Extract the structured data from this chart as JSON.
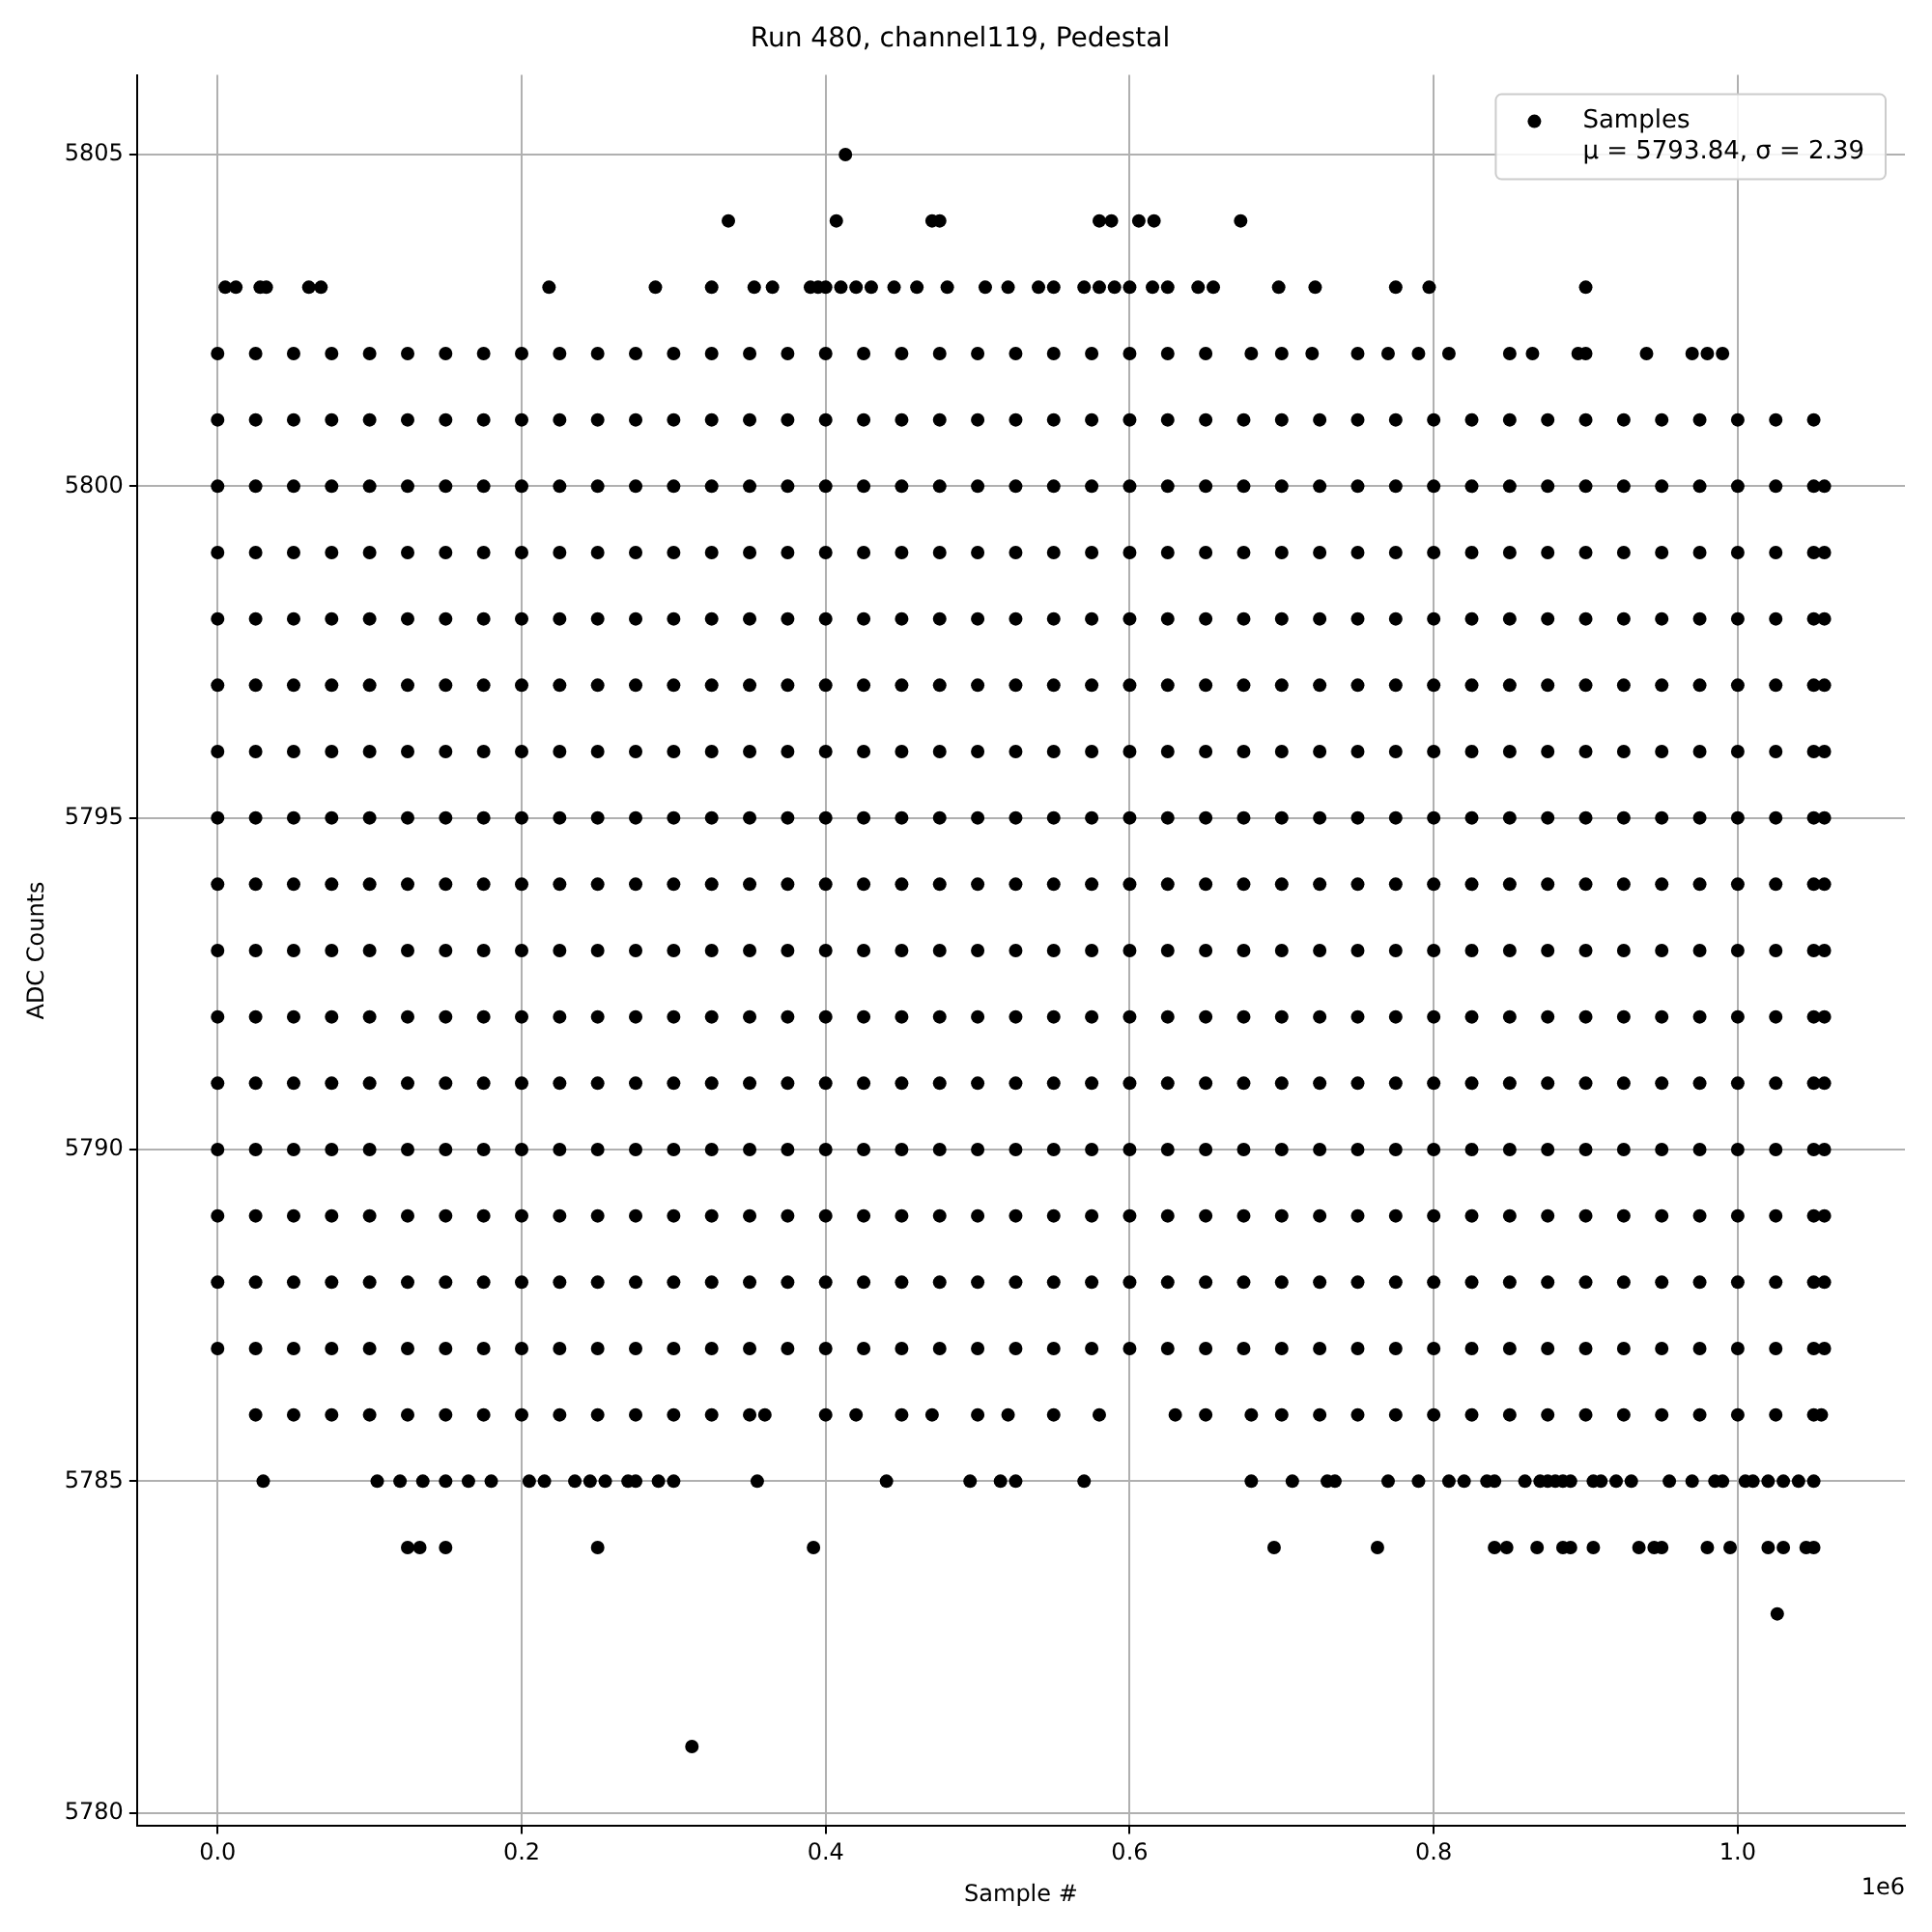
{
  "chart_data": {
    "type": "scatter",
    "title": "Run 480, channel119, Pedestal",
    "xlabel": "Sample #",
    "ylabel": "ADC Counts",
    "annotations": [
      "1e6"
    ],
    "xlim": [
      -0.053,
      1.11
    ],
    "ylim": [
      5779.8,
      5806.2
    ],
    "xticks": [
      {
        "value": 0,
        "label": "0.0"
      },
      {
        "value": 0.2,
        "label": "0.2"
      },
      {
        "value": 0.4,
        "label": "0.4"
      },
      {
        "value": 0.6,
        "label": "0.6"
      },
      {
        "value": 0.8,
        "label": "0.8"
      },
      {
        "value": 1,
        "label": "1.0"
      }
    ],
    "yticks": [
      5780,
      5785,
      5790,
      5795,
      5800,
      5805
    ],
    "grid": true,
    "legend": "top right",
    "marker": "circle",
    "series": [
      {
        "name": "Samples\nμ = 5793.84, σ = 2.39",
        "color": "#000000",
        "x": [
          0.413,
          0.336,
          0.407,
          0.47,
          0.475,
          0.58,
          0.588,
          0.606,
          0.616,
          0.673,
          1.026,
          0.312
        ],
        "values": [
          5805,
          5804,
          5804,
          5804,
          5804,
          5804,
          5804,
          5804,
          5804,
          5804,
          5783,
          5781
        ]
      },
      {
        "color": "#000000",
        "x": [
          0.005,
          0.012,
          0.028,
          0.032,
          0.06,
          0.068,
          0.218,
          0.288,
          0.325,
          0.353,
          0.365,
          0.39,
          0.395,
          0.4,
          0.41,
          0.42,
          0.43,
          0.445,
          0.46,
          0.48,
          0.505,
          0.52,
          0.54,
          0.55,
          0.57,
          0.58,
          0.59,
          0.6,
          0.615,
          0.625,
          0.645,
          0.655,
          0.698,
          0.722,
          0.775,
          0.797,
          0.9
        ],
        "values": [
          5803,
          5803,
          5803,
          5803,
          5803,
          5803,
          5803,
          5803,
          5803,
          5803,
          5803,
          5803,
          5803,
          5803,
          5803,
          5803,
          5803,
          5803,
          5803,
          5803,
          5803,
          5803,
          5803,
          5803,
          5803,
          5803,
          5803,
          5803,
          5803,
          5803,
          5803,
          5803,
          5803,
          5803,
          5803,
          5803,
          5803
        ]
      },
      {
        "color": "#000000",
        "x": [
          0,
          0.025,
          0.05,
          0.075,
          0.1,
          0.125,
          0.15,
          0.175,
          0.2,
          0.225,
          0.25,
          0.275,
          0.3,
          0.325,
          0.35,
          0.375,
          0.4,
          0.425,
          0.45,
          0.475,
          0.5,
          0.525,
          0.55,
          0.575,
          0.6,
          0.625,
          0.65,
          0.68,
          0.7,
          0.72,
          0.75,
          0.77,
          0.79,
          0.81,
          0.85,
          0.865,
          0.895,
          0.9,
          0.94,
          0.97,
          0.98,
          0.99
        ],
        "values": [
          5802,
          5802,
          5802,
          5802,
          5802,
          5802,
          5802,
          5802,
          5802,
          5802,
          5802,
          5802,
          5802,
          5802,
          5802,
          5802,
          5802,
          5802,
          5802,
          5802,
          5802,
          5802,
          5802,
          5802,
          5802,
          5802,
          5802,
          5802,
          5802,
          5802,
          5802,
          5802,
          5802,
          5802,
          5802,
          5802,
          5802,
          5802,
          5802,
          5802,
          5802,
          5802
        ]
      },
      {
        "color": "#000000",
        "x": [
          0,
          0.025,
          0.05,
          0.075,
          0.1,
          0.125,
          0.15,
          0.175,
          0.2,
          0.225,
          0.25,
          0.275,
          0.3,
          0.325,
          0.35,
          0.375,
          0.4,
          0.425,
          0.45,
          0.475,
          0.5,
          0.525,
          0.55,
          0.575,
          0.6,
          0.625,
          0.65,
          0.675,
          0.7,
          0.725,
          0.75,
          0.775,
          0.8,
          0.825,
          0.85,
          0.875,
          0.9,
          0.925,
          0.95,
          0.975,
          1,
          1.025,
          1.05
        ],
        "values": [
          5801,
          5801,
          5801,
          5801,
          5801,
          5801,
          5801,
          5801,
          5801,
          5801,
          5801,
          5801,
          5801,
          5801,
          5801,
          5801,
          5801,
          5801,
          5801,
          5801,
          5801,
          5801,
          5801,
          5801,
          5801,
          5801,
          5801,
          5801,
          5801,
          5801,
          5801,
          5801,
          5801,
          5801,
          5801,
          5801,
          5801,
          5801,
          5801,
          5801,
          5801,
          5801,
          5801
        ]
      },
      {
        "color": "#000000",
        "x": [
          0,
          0.025,
          0.05,
          0.075,
          0.1,
          0.125,
          0.15,
          0.175,
          0.2,
          0.225,
          0.25,
          0.275,
          0.3,
          0.325,
          0.35,
          0.375,
          0.4,
          0.425,
          0.45,
          0.475,
          0.5,
          0.525,
          0.55,
          0.575,
          0.6,
          0.625,
          0.65,
          0.675,
          0.7,
          0.725,
          0.75,
          0.775,
          0.8,
          0.825,
          0.85,
          0.875,
          0.9,
          0.925,
          0.95,
          0.975,
          1,
          1.025,
          1.05,
          1.057
        ],
        "values": [
          5800,
          5800,
          5800,
          5800,
          5800,
          5800,
          5800,
          5800,
          5800,
          5800,
          5800,
          5800,
          5800,
          5800,
          5800,
          5800,
          5800,
          5800,
          5800,
          5800,
          5800,
          5800,
          5800,
          5800,
          5800,
          5800,
          5800,
          5800,
          5800,
          5800,
          5800,
          5800,
          5800,
          5800,
          5800,
          5800,
          5800,
          5800,
          5800,
          5800,
          5800,
          5800,
          5800,
          5800
        ]
      },
      {
        "color": "#000000",
        "x": [
          0,
          0.025,
          0.05,
          0.075,
          0.1,
          0.125,
          0.15,
          0.175,
          0.2,
          0.225,
          0.25,
          0.275,
          0.3,
          0.325,
          0.35,
          0.375,
          0.4,
          0.425,
          0.45,
          0.475,
          0.5,
          0.525,
          0.55,
          0.575,
          0.6,
          0.625,
          0.65,
          0.675,
          0.7,
          0.725,
          0.75,
          0.775,
          0.8,
          0.825,
          0.85,
          0.875,
          0.9,
          0.925,
          0.95,
          0.975,
          1,
          1.025,
          1.05,
          1.057
        ],
        "values": [
          5799,
          5799,
          5799,
          5799,
          5799,
          5799,
          5799,
          5799,
          5799,
          5799,
          5799,
          5799,
          5799,
          5799,
          5799,
          5799,
          5799,
          5799,
          5799,
          5799,
          5799,
          5799,
          5799,
          5799,
          5799,
          5799,
          5799,
          5799,
          5799,
          5799,
          5799,
          5799,
          5799,
          5799,
          5799,
          5799,
          5799,
          5799,
          5799,
          5799,
          5799,
          5799,
          5799,
          5799
        ]
      },
      {
        "color": "#000000",
        "x": [
          0,
          0.025,
          0.05,
          0.075,
          0.1,
          0.125,
          0.15,
          0.175,
          0.2,
          0.225,
          0.25,
          0.275,
          0.3,
          0.325,
          0.35,
          0.375,
          0.4,
          0.425,
          0.45,
          0.475,
          0.5,
          0.525,
          0.55,
          0.575,
          0.6,
          0.625,
          0.65,
          0.675,
          0.7,
          0.725,
          0.75,
          0.775,
          0.8,
          0.825,
          0.85,
          0.875,
          0.9,
          0.925,
          0.95,
          0.975,
          1,
          1.025,
          1.05,
          1.057
        ],
        "values": [
          5798,
          5798,
          5798,
          5798,
          5798,
          5798,
          5798,
          5798,
          5798,
          5798,
          5798,
          5798,
          5798,
          5798,
          5798,
          5798,
          5798,
          5798,
          5798,
          5798,
          5798,
          5798,
          5798,
          5798,
          5798,
          5798,
          5798,
          5798,
          5798,
          5798,
          5798,
          5798,
          5798,
          5798,
          5798,
          5798,
          5798,
          5798,
          5798,
          5798,
          5798,
          5798,
          5798,
          5798
        ]
      },
      {
        "color": "#000000",
        "x": [
          0,
          0.025,
          0.05,
          0.075,
          0.1,
          0.125,
          0.15,
          0.175,
          0.2,
          0.225,
          0.25,
          0.275,
          0.3,
          0.325,
          0.35,
          0.375,
          0.4,
          0.425,
          0.45,
          0.475,
          0.5,
          0.525,
          0.55,
          0.575,
          0.6,
          0.625,
          0.65,
          0.675,
          0.7,
          0.725,
          0.75,
          0.775,
          0.8,
          0.825,
          0.85,
          0.875,
          0.9,
          0.925,
          0.95,
          0.975,
          1,
          1.025,
          1.05,
          1.057
        ],
        "values": [
          5797,
          5797,
          5797,
          5797,
          5797,
          5797,
          5797,
          5797,
          5797,
          5797,
          5797,
          5797,
          5797,
          5797,
          5797,
          5797,
          5797,
          5797,
          5797,
          5797,
          5797,
          5797,
          5797,
          5797,
          5797,
          5797,
          5797,
          5797,
          5797,
          5797,
          5797,
          5797,
          5797,
          5797,
          5797,
          5797,
          5797,
          5797,
          5797,
          5797,
          5797,
          5797,
          5797,
          5797
        ]
      },
      {
        "color": "#000000",
        "x": [
          0,
          0.025,
          0.05,
          0.075,
          0.1,
          0.125,
          0.15,
          0.175,
          0.2,
          0.225,
          0.25,
          0.275,
          0.3,
          0.325,
          0.35,
          0.375,
          0.4,
          0.425,
          0.45,
          0.475,
          0.5,
          0.525,
          0.55,
          0.575,
          0.6,
          0.625,
          0.65,
          0.675,
          0.7,
          0.725,
          0.75,
          0.775,
          0.8,
          0.825,
          0.85,
          0.875,
          0.9,
          0.925,
          0.95,
          0.975,
          1,
          1.025,
          1.05,
          1.057
        ],
        "values": [
          5796,
          5796,
          5796,
          5796,
          5796,
          5796,
          5796,
          5796,
          5796,
          5796,
          5796,
          5796,
          5796,
          5796,
          5796,
          5796,
          5796,
          5796,
          5796,
          5796,
          5796,
          5796,
          5796,
          5796,
          5796,
          5796,
          5796,
          5796,
          5796,
          5796,
          5796,
          5796,
          5796,
          5796,
          5796,
          5796,
          5796,
          5796,
          5796,
          5796,
          5796,
          5796,
          5796,
          5796
        ]
      },
      {
        "color": "#000000",
        "x": [
          0,
          0.025,
          0.05,
          0.075,
          0.1,
          0.125,
          0.15,
          0.175,
          0.2,
          0.225,
          0.25,
          0.275,
          0.3,
          0.325,
          0.35,
          0.375,
          0.4,
          0.425,
          0.45,
          0.475,
          0.5,
          0.525,
          0.55,
          0.575,
          0.6,
          0.625,
          0.65,
          0.675,
          0.7,
          0.725,
          0.75,
          0.775,
          0.8,
          0.825,
          0.85,
          0.875,
          0.9,
          0.925,
          0.95,
          0.975,
          1,
          1.025,
          1.05,
          1.057
        ],
        "values": [
          5795,
          5795,
          5795,
          5795,
          5795,
          5795,
          5795,
          5795,
          5795,
          5795,
          5795,
          5795,
          5795,
          5795,
          5795,
          5795,
          5795,
          5795,
          5795,
          5795,
          5795,
          5795,
          5795,
          5795,
          5795,
          5795,
          5795,
          5795,
          5795,
          5795,
          5795,
          5795,
          5795,
          5795,
          5795,
          5795,
          5795,
          5795,
          5795,
          5795,
          5795,
          5795,
          5795,
          5795
        ]
      },
      {
        "color": "#000000",
        "x": [
          0,
          0.025,
          0.05,
          0.075,
          0.1,
          0.125,
          0.15,
          0.175,
          0.2,
          0.225,
          0.25,
          0.275,
          0.3,
          0.325,
          0.35,
          0.375,
          0.4,
          0.425,
          0.45,
          0.475,
          0.5,
          0.525,
          0.55,
          0.575,
          0.6,
          0.625,
          0.65,
          0.675,
          0.7,
          0.725,
          0.75,
          0.775,
          0.8,
          0.825,
          0.85,
          0.875,
          0.9,
          0.925,
          0.95,
          0.975,
          1,
          1.025,
          1.05,
          1.057
        ],
        "values": [
          5794,
          5794,
          5794,
          5794,
          5794,
          5794,
          5794,
          5794,
          5794,
          5794,
          5794,
          5794,
          5794,
          5794,
          5794,
          5794,
          5794,
          5794,
          5794,
          5794,
          5794,
          5794,
          5794,
          5794,
          5794,
          5794,
          5794,
          5794,
          5794,
          5794,
          5794,
          5794,
          5794,
          5794,
          5794,
          5794,
          5794,
          5794,
          5794,
          5794,
          5794,
          5794,
          5794,
          5794
        ]
      },
      {
        "color": "#000000",
        "x": [
          0,
          0.025,
          0.05,
          0.075,
          0.1,
          0.125,
          0.15,
          0.175,
          0.2,
          0.225,
          0.25,
          0.275,
          0.3,
          0.325,
          0.35,
          0.375,
          0.4,
          0.425,
          0.45,
          0.475,
          0.5,
          0.525,
          0.55,
          0.575,
          0.6,
          0.625,
          0.65,
          0.675,
          0.7,
          0.725,
          0.75,
          0.775,
          0.8,
          0.825,
          0.85,
          0.875,
          0.9,
          0.925,
          0.95,
          0.975,
          1,
          1.025,
          1.05,
          1.057
        ],
        "values": [
          5793,
          5793,
          5793,
          5793,
          5793,
          5793,
          5793,
          5793,
          5793,
          5793,
          5793,
          5793,
          5793,
          5793,
          5793,
          5793,
          5793,
          5793,
          5793,
          5793,
          5793,
          5793,
          5793,
          5793,
          5793,
          5793,
          5793,
          5793,
          5793,
          5793,
          5793,
          5793,
          5793,
          5793,
          5793,
          5793,
          5793,
          5793,
          5793,
          5793,
          5793,
          5793,
          5793,
          5793
        ]
      },
      {
        "color": "#000000",
        "x": [
          0,
          0.025,
          0.05,
          0.075,
          0.1,
          0.125,
          0.15,
          0.175,
          0.2,
          0.225,
          0.25,
          0.275,
          0.3,
          0.325,
          0.35,
          0.375,
          0.4,
          0.425,
          0.45,
          0.475,
          0.5,
          0.525,
          0.55,
          0.575,
          0.6,
          0.625,
          0.65,
          0.675,
          0.7,
          0.725,
          0.75,
          0.775,
          0.8,
          0.825,
          0.85,
          0.875,
          0.9,
          0.925,
          0.95,
          0.975,
          1,
          1.025,
          1.05,
          1.057
        ],
        "values": [
          5792,
          5792,
          5792,
          5792,
          5792,
          5792,
          5792,
          5792,
          5792,
          5792,
          5792,
          5792,
          5792,
          5792,
          5792,
          5792,
          5792,
          5792,
          5792,
          5792,
          5792,
          5792,
          5792,
          5792,
          5792,
          5792,
          5792,
          5792,
          5792,
          5792,
          5792,
          5792,
          5792,
          5792,
          5792,
          5792,
          5792,
          5792,
          5792,
          5792,
          5792,
          5792,
          5792,
          5792
        ]
      },
      {
        "color": "#000000",
        "x": [
          0,
          0.025,
          0.05,
          0.075,
          0.1,
          0.125,
          0.15,
          0.175,
          0.2,
          0.225,
          0.25,
          0.275,
          0.3,
          0.325,
          0.35,
          0.375,
          0.4,
          0.425,
          0.45,
          0.475,
          0.5,
          0.525,
          0.55,
          0.575,
          0.6,
          0.625,
          0.65,
          0.675,
          0.7,
          0.725,
          0.75,
          0.775,
          0.8,
          0.825,
          0.85,
          0.875,
          0.9,
          0.925,
          0.95,
          0.975,
          1,
          1.025,
          1.05,
          1.057
        ],
        "values": [
          5791,
          5791,
          5791,
          5791,
          5791,
          5791,
          5791,
          5791,
          5791,
          5791,
          5791,
          5791,
          5791,
          5791,
          5791,
          5791,
          5791,
          5791,
          5791,
          5791,
          5791,
          5791,
          5791,
          5791,
          5791,
          5791,
          5791,
          5791,
          5791,
          5791,
          5791,
          5791,
          5791,
          5791,
          5791,
          5791,
          5791,
          5791,
          5791,
          5791,
          5791,
          5791,
          5791,
          5791
        ]
      },
      {
        "color": "#000000",
        "x": [
          0,
          0.025,
          0.05,
          0.075,
          0.1,
          0.125,
          0.15,
          0.175,
          0.2,
          0.225,
          0.25,
          0.275,
          0.3,
          0.325,
          0.35,
          0.375,
          0.4,
          0.425,
          0.45,
          0.475,
          0.5,
          0.525,
          0.55,
          0.575,
          0.6,
          0.625,
          0.65,
          0.675,
          0.7,
          0.725,
          0.75,
          0.775,
          0.8,
          0.825,
          0.85,
          0.875,
          0.9,
          0.925,
          0.95,
          0.975,
          1,
          1.025,
          1.05,
          1.057
        ],
        "values": [
          5790,
          5790,
          5790,
          5790,
          5790,
          5790,
          5790,
          5790,
          5790,
          5790,
          5790,
          5790,
          5790,
          5790,
          5790,
          5790,
          5790,
          5790,
          5790,
          5790,
          5790,
          5790,
          5790,
          5790,
          5790,
          5790,
          5790,
          5790,
          5790,
          5790,
          5790,
          5790,
          5790,
          5790,
          5790,
          5790,
          5790,
          5790,
          5790,
          5790,
          5790,
          5790,
          5790,
          5790
        ]
      },
      {
        "color": "#000000",
        "x": [
          0,
          0.025,
          0.05,
          0.075,
          0.1,
          0.125,
          0.15,
          0.175,
          0.2,
          0.225,
          0.25,
          0.275,
          0.3,
          0.325,
          0.35,
          0.375,
          0.4,
          0.425,
          0.45,
          0.475,
          0.5,
          0.525,
          0.55,
          0.575,
          0.6,
          0.625,
          0.65,
          0.675,
          0.7,
          0.725,
          0.75,
          0.775,
          0.8,
          0.825,
          0.85,
          0.875,
          0.9,
          0.925,
          0.95,
          0.975,
          1,
          1.025,
          1.05,
          1.057
        ],
        "values": [
          5789,
          5789,
          5789,
          5789,
          5789,
          5789,
          5789,
          5789,
          5789,
          5789,
          5789,
          5789,
          5789,
          5789,
          5789,
          5789,
          5789,
          5789,
          5789,
          5789,
          5789,
          5789,
          5789,
          5789,
          5789,
          5789,
          5789,
          5789,
          5789,
          5789,
          5789,
          5789,
          5789,
          5789,
          5789,
          5789,
          5789,
          5789,
          5789,
          5789,
          5789,
          5789,
          5789,
          5789
        ]
      },
      {
        "color": "#000000",
        "x": [
          0,
          0.025,
          0.05,
          0.075,
          0.1,
          0.125,
          0.15,
          0.175,
          0.2,
          0.225,
          0.25,
          0.275,
          0.3,
          0.325,
          0.35,
          0.375,
          0.4,
          0.425,
          0.45,
          0.475,
          0.5,
          0.525,
          0.55,
          0.575,
          0.6,
          0.625,
          0.65,
          0.675,
          0.7,
          0.725,
          0.75,
          0.775,
          0.8,
          0.825,
          0.85,
          0.875,
          0.9,
          0.925,
          0.95,
          0.975,
          1,
          1.025,
          1.05,
          1.057
        ],
        "values": [
          5788,
          5788,
          5788,
          5788,
          5788,
          5788,
          5788,
          5788,
          5788,
          5788,
          5788,
          5788,
          5788,
          5788,
          5788,
          5788,
          5788,
          5788,
          5788,
          5788,
          5788,
          5788,
          5788,
          5788,
          5788,
          5788,
          5788,
          5788,
          5788,
          5788,
          5788,
          5788,
          5788,
          5788,
          5788,
          5788,
          5788,
          5788,
          5788,
          5788,
          5788,
          5788,
          5788,
          5788
        ]
      },
      {
        "color": "#000000",
        "x": [
          0,
          0.025,
          0.05,
          0.075,
          0.1,
          0.125,
          0.15,
          0.175,
          0.2,
          0.225,
          0.25,
          0.275,
          0.3,
          0.325,
          0.35,
          0.375,
          0.4,
          0.425,
          0.45,
          0.475,
          0.5,
          0.525,
          0.55,
          0.575,
          0.6,
          0.625,
          0.65,
          0.675,
          0.7,
          0.725,
          0.75,
          0.775,
          0.8,
          0.825,
          0.85,
          0.875,
          0.9,
          0.925,
          0.95,
          0.975,
          1,
          1.025,
          1.05,
          1.057
        ],
        "values": [
          5787,
          5787,
          5787,
          5787,
          5787,
          5787,
          5787,
          5787,
          5787,
          5787,
          5787,
          5787,
          5787,
          5787,
          5787,
          5787,
          5787,
          5787,
          5787,
          5787,
          5787,
          5787,
          5787,
          5787,
          5787,
          5787,
          5787,
          5787,
          5787,
          5787,
          5787,
          5787,
          5787,
          5787,
          5787,
          5787,
          5787,
          5787,
          5787,
          5787,
          5787,
          5787,
          5787,
          5787
        ]
      },
      {
        "color": "#000000",
        "x": [
          0.025,
          0.05,
          0.075,
          0.1,
          0.125,
          0.15,
          0.175,
          0.2,
          0.225,
          0.25,
          0.275,
          0.3,
          0.325,
          0.35,
          0.36,
          0.4,
          0.42,
          0.45,
          0.47,
          0.5,
          0.52,
          0.55,
          0.58,
          0.63,
          0.65,
          0.68,
          0.7,
          0.725,
          0.75,
          0.775,
          0.8,
          0.825,
          0.85,
          0.875,
          0.9,
          0.925,
          0.95,
          0.975,
          1,
          1.025,
          1.05,
          1.055
        ],
        "values": [
          5786,
          5786,
          5786,
          5786,
          5786,
          5786,
          5786,
          5786,
          5786,
          5786,
          5786,
          5786,
          5786,
          5786,
          5786,
          5786,
          5786,
          5786,
          5786,
          5786,
          5786,
          5786,
          5786,
          5786,
          5786,
          5786,
          5786,
          5786,
          5786,
          5786,
          5786,
          5786,
          5786,
          5786,
          5786,
          5786,
          5786,
          5786,
          5786,
          5786,
          5786,
          5786
        ]
      },
      {
        "color": "#000000",
        "x": [
          0.03,
          0.105,
          0.12,
          0.135,
          0.15,
          0.165,
          0.18,
          0.205,
          0.215,
          0.235,
          0.245,
          0.255,
          0.27,
          0.275,
          0.29,
          0.3,
          0.355,
          0.44,
          0.495,
          0.515,
          0.525,
          0.57,
          0.68,
          0.707,
          0.73,
          0.735,
          0.77,
          0.79,
          0.81,
          0.82,
          0.835,
          0.84,
          0.86,
          0.87,
          0.875,
          0.88,
          0.885,
          0.89,
          0.905,
          0.91,
          0.92,
          0.93,
          0.955,
          0.97,
          0.985,
          0.99,
          1.005,
          1.01,
          1.02,
          1.03,
          1.04,
          1.05
        ],
        "values": [
          5785,
          5785,
          5785,
          5785,
          5785,
          5785,
          5785,
          5785,
          5785,
          5785,
          5785,
          5785,
          5785,
          5785,
          5785,
          5785,
          5785,
          5785,
          5785,
          5785,
          5785,
          5785,
          5785,
          5785,
          5785,
          5785,
          5785,
          5785,
          5785,
          5785,
          5785,
          5785,
          5785,
          5785,
          5785,
          5785,
          5785,
          5785,
          5785,
          5785,
          5785,
          5785,
          5785,
          5785,
          5785,
          5785,
          5785,
          5785,
          5785,
          5785,
          5785,
          5785
        ]
      },
      {
        "color": "#000000",
        "x": [
          0.125,
          0.133,
          0.15,
          0.25,
          0.392,
          0.695,
          0.763,
          0.84,
          0.848,
          0.868,
          0.885,
          0.89,
          0.905,
          0.935,
          0.945,
          0.95,
          0.98,
          0.995,
          1.02,
          1.03,
          1.045,
          1.05
        ],
        "values": [
          5784,
          5784,
          5784,
          5784,
          5784,
          5784,
          5784,
          5784,
          5784,
          5784,
          5784,
          5784,
          5784,
          5784,
          5784,
          5784,
          5784,
          5784,
          5784,
          5784,
          5784,
          5784
        ]
      }
    ]
  }
}
